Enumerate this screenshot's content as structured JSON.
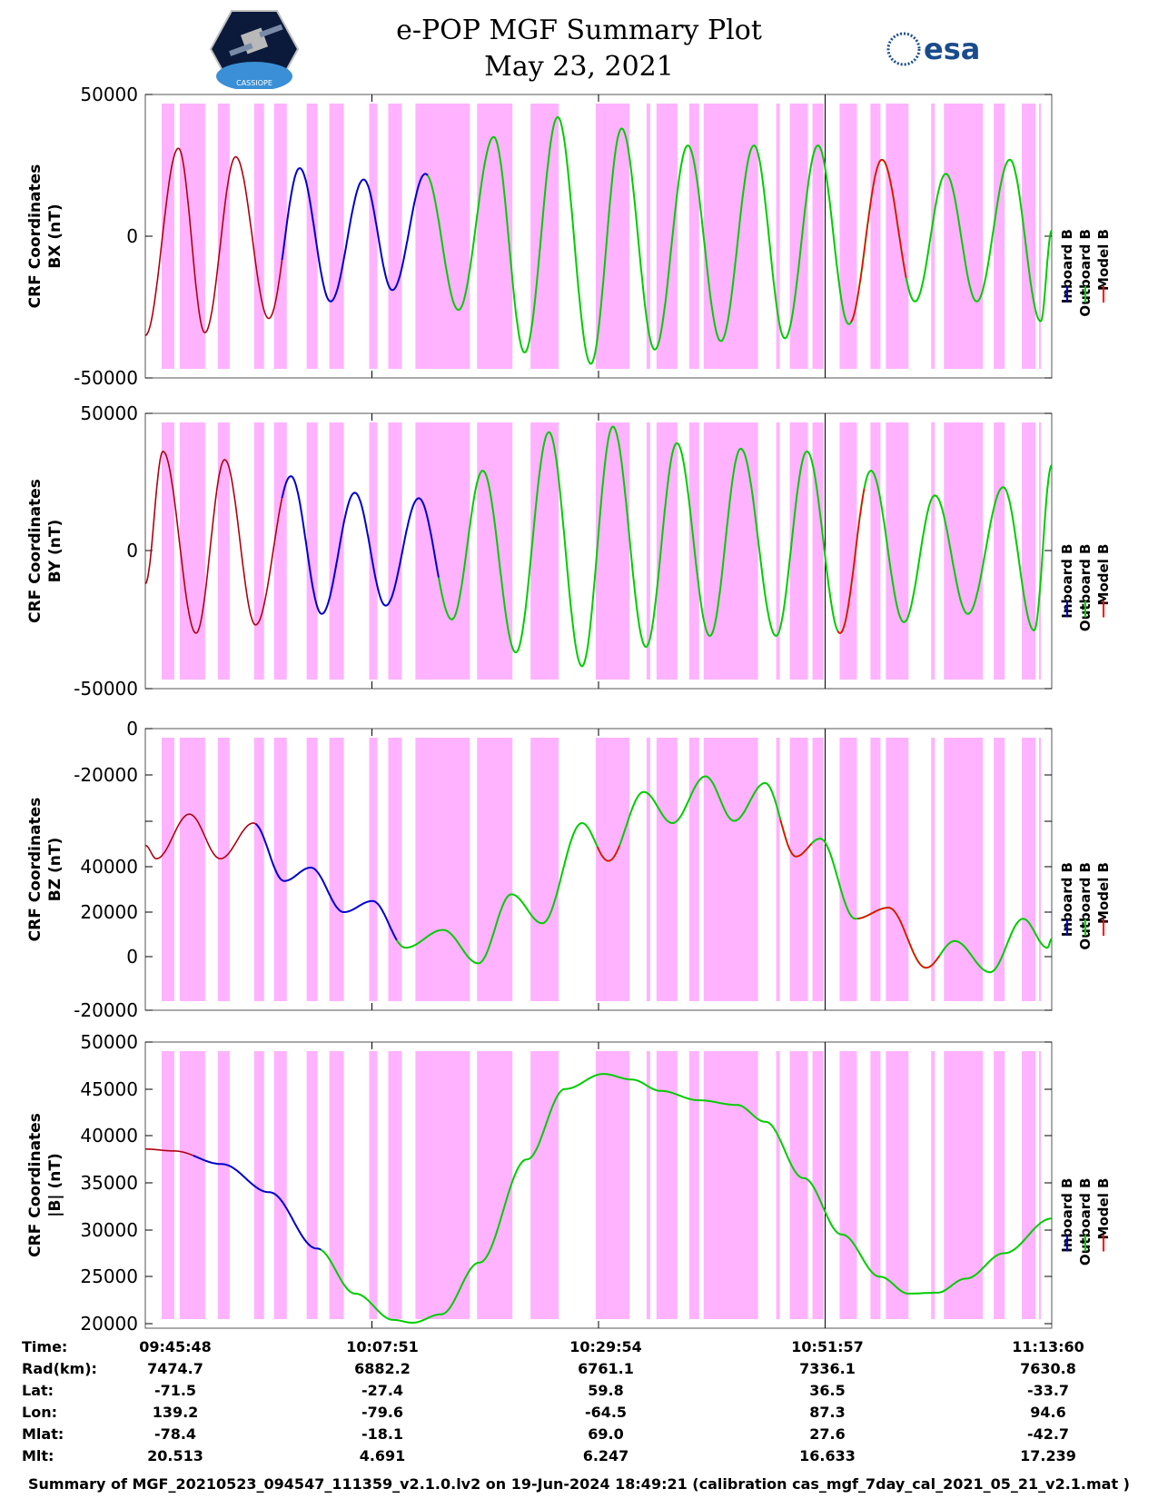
{
  "header": {
    "title": "e-POP MGF Summary Plot",
    "date": "May 23, 2021",
    "esa_logo_text": "esa",
    "epop_logo_text": "CASSIOPE"
  },
  "legend": {
    "labels": [
      "Inboard B",
      "Outboard B",
      "Model B"
    ],
    "colors": [
      "#0000cc",
      "#00cc00",
      "#ff0000"
    ]
  },
  "colors": {
    "shade": "#ffb3ff",
    "inboard": "#0000cc",
    "outboard": "#00cc00",
    "model": "#ff0000"
  },
  "chart_data": [
    {
      "type": "line",
      "ylabel": [
        "CRF Coordinates",
        "BX (nT)"
      ],
      "ylim": [
        -50000,
        50000
      ],
      "yticks": [
        "50000",
        "0",
        "-50000"
      ],
      "peaks": [
        [
          0,
          -35000
        ],
        [
          1.5,
          31000
        ],
        [
          2.7,
          -34000
        ],
        [
          4.1,
          28000
        ],
        [
          5.6,
          -29000
        ],
        [
          7.0,
          24000
        ],
        [
          8.4,
          -23000
        ],
        [
          9.9,
          20000
        ],
        [
          11.2,
          -19000
        ],
        [
          12.7,
          22000
        ],
        [
          14.2,
          -26000
        ],
        [
          15.8,
          35000
        ],
        [
          17.2,
          -41000
        ],
        [
          18.7,
          42000
        ],
        [
          20.2,
          -45000
        ],
        [
          21.6,
          38000
        ],
        [
          23.1,
          -40000
        ],
        [
          24.6,
          32000
        ],
        [
          26.1,
          -37000
        ],
        [
          27.6,
          32000
        ],
        [
          29.0,
          -36000
        ],
        [
          30.5,
          32000
        ],
        [
          31.9,
          -31000
        ],
        [
          33.4,
          27000
        ],
        [
          34.9,
          -23000
        ],
        [
          36.3,
          22000
        ],
        [
          37.7,
          -23000
        ],
        [
          39.2,
          27000
        ],
        [
          40.6,
          -30000
        ],
        [
          41.1,
          2000
        ]
      ],
      "model_ranges": [
        [
          0,
          6.2
        ],
        [
          32.0,
          34.5
        ]
      ],
      "inboard_range": [
        6.2,
        12.8
      ],
      "outboard_range": [
        12.8,
        41.1
      ]
    },
    {
      "type": "line",
      "ylabel": [
        "CRF Coordinates",
        "BY (nT)"
      ],
      "ylim": [
        -50000,
        50000
      ],
      "yticks": [
        "50000",
        "0",
        "-50000"
      ],
      "peaks": [
        [
          0,
          -12000
        ],
        [
          0.8,
          36000
        ],
        [
          2.3,
          -30000
        ],
        [
          3.6,
          33000
        ],
        [
          5.0,
          -27000
        ],
        [
          6.6,
          27000
        ],
        [
          8.0,
          -23000
        ],
        [
          9.5,
          21000
        ],
        [
          10.9,
          -20000
        ],
        [
          12.4,
          19000
        ],
        [
          13.9,
          -25000
        ],
        [
          15.3,
          29000
        ],
        [
          16.8,
          -37000
        ],
        [
          18.3,
          43000
        ],
        [
          19.8,
          -42000
        ],
        [
          21.2,
          45000
        ],
        [
          22.7,
          -35000
        ],
        [
          24.1,
          39000
        ],
        [
          25.6,
          -31000
        ],
        [
          27.0,
          37000
        ],
        [
          28.6,
          -31000
        ],
        [
          30.0,
          36000
        ],
        [
          31.5,
          -30000
        ],
        [
          32.9,
          29000
        ],
        [
          34.4,
          -26000
        ],
        [
          35.8,
          20000
        ],
        [
          37.3,
          -23000
        ],
        [
          38.9,
          23000
        ],
        [
          40.3,
          -29000
        ],
        [
          41.1,
          31000
        ]
      ],
      "model_ranges": [
        [
          0,
          6.2
        ],
        [
          31.4,
          32.6
        ]
      ],
      "inboard_range": [
        6.2,
        13.3
      ],
      "outboard_range": [
        13.3,
        41.1
      ]
    },
    {
      "type": "line",
      "ylabel": [
        "CRF Coordinates",
        "BZ (nT)"
      ],
      "ylim": [
        -20000,
        0
      ],
      "yticks": [
        "0",
        "-20000",
        "",
        "40000",
        "20000",
        "0",
        "-20000"
      ],
      "peaks": [
        [
          0,
          50000
        ],
        [
          0.5,
          44000
        ],
        [
          2.0,
          64000
        ],
        [
          3.4,
          44000
        ],
        [
          4.9,
          60000
        ],
        [
          6.3,
          34000
        ],
        [
          7.5,
          40000
        ],
        [
          9.0,
          20000
        ],
        [
          10.3,
          25000
        ],
        [
          11.8,
          4000
        ],
        [
          13.5,
          12000
        ],
        [
          15.1,
          -3000
        ],
        [
          16.6,
          28000
        ],
        [
          18.0,
          15000
        ],
        [
          19.8,
          60000
        ],
        [
          21.0,
          43000
        ],
        [
          22.6,
          74000
        ],
        [
          23.9,
          60000
        ],
        [
          25.4,
          81000
        ],
        [
          26.7,
          61000
        ],
        [
          28.1,
          78000
        ],
        [
          29.5,
          45000
        ],
        [
          30.6,
          53000
        ],
        [
          32.2,
          17000
        ],
        [
          33.7,
          22000
        ],
        [
          35.4,
          -5000
        ],
        [
          36.7,
          7000
        ],
        [
          38.3,
          -7000
        ],
        [
          39.8,
          17000
        ],
        [
          40.9,
          4000
        ],
        [
          41.1,
          8000
        ]
      ],
      "model_ranges": [
        [
          0,
          5.0
        ],
        [
          20.5,
          21.5
        ],
        [
          28.8,
          30.2
        ],
        [
          32.3,
          36.0
        ]
      ],
      "inboard_range": [
        5.0,
        11.4
      ],
      "outboard_range": [
        11.4,
        41.1
      ]
    },
    {
      "type": "line",
      "ylabel": [
        "CRF Coordinates",
        "|B| (nT)"
      ],
      "ylim": [
        20000,
        50000
      ],
      "yticks": [
        "50000",
        "45000",
        "40000",
        "35000",
        "30000",
        "25000",
        "20000"
      ],
      "peaks": [
        [
          0,
          38600
        ],
        [
          1.5,
          38400
        ],
        [
          4.0,
          37000
        ],
        [
          6.5,
          34000
        ],
        [
          9.0,
          28000
        ],
        [
          11.0,
          23200
        ],
        [
          13.0,
          20400
        ],
        [
          14.0,
          20100
        ],
        [
          15.5,
          21000
        ],
        [
          17.5,
          26500
        ],
        [
          20.0,
          37500
        ],
        [
          22.0,
          45000
        ],
        [
          24.0,
          46600
        ],
        [
          25.5,
          46000
        ],
        [
          27.0,
          44800
        ],
        [
          29.0,
          43800
        ],
        [
          31.0,
          43300
        ],
        [
          32.5,
          41500
        ],
        [
          34.5,
          35500
        ],
        [
          36.5,
          29500
        ],
        [
          38.5,
          25000
        ],
        [
          40.0,
          23200
        ],
        [
          41.5,
          23300
        ],
        [
          43.0,
          24800
        ],
        [
          45.0,
          27500
        ],
        [
          47.5,
          31200
        ]
      ],
      "model_ranges": [
        [
          0,
          2.5
        ]
      ],
      "inboard_range": [
        2.5,
        9.2
      ],
      "outboard_range": [
        9.2,
        47.5
      ]
    }
  ],
  "footer": {
    "row_labels": [
      "Time:",
      "Rad(km):",
      "Lat:",
      "Lon:",
      "Mlat:",
      "Mlt:"
    ],
    "columns": [
      [
        "09:45:48",
        "7474.7",
        "-71.5",
        "139.2",
        "-78.4",
        "20.513"
      ],
      [
        "10:07:51",
        "6882.2",
        "-27.4",
        "-79.6",
        "-18.1",
        "4.691"
      ],
      [
        "10:29:54",
        "6761.1",
        "59.8",
        "-64.5",
        "69.0",
        "6.247"
      ],
      [
        "10:51:57",
        "7336.1",
        "36.5",
        "87.3",
        "27.6",
        "16.633"
      ],
      [
        "11:13:60",
        "7630.8",
        "-33.7",
        "94.6",
        "-42.7",
        "17.239"
      ]
    ],
    "caption": "Summary of MGF_20210523_094547_111359_v2.1.0.lv2 on 19-Jun-2024 18:49:21 (calibration cas_mgf_7day_cal_2021_05_21_v2.1.mat )"
  }
}
